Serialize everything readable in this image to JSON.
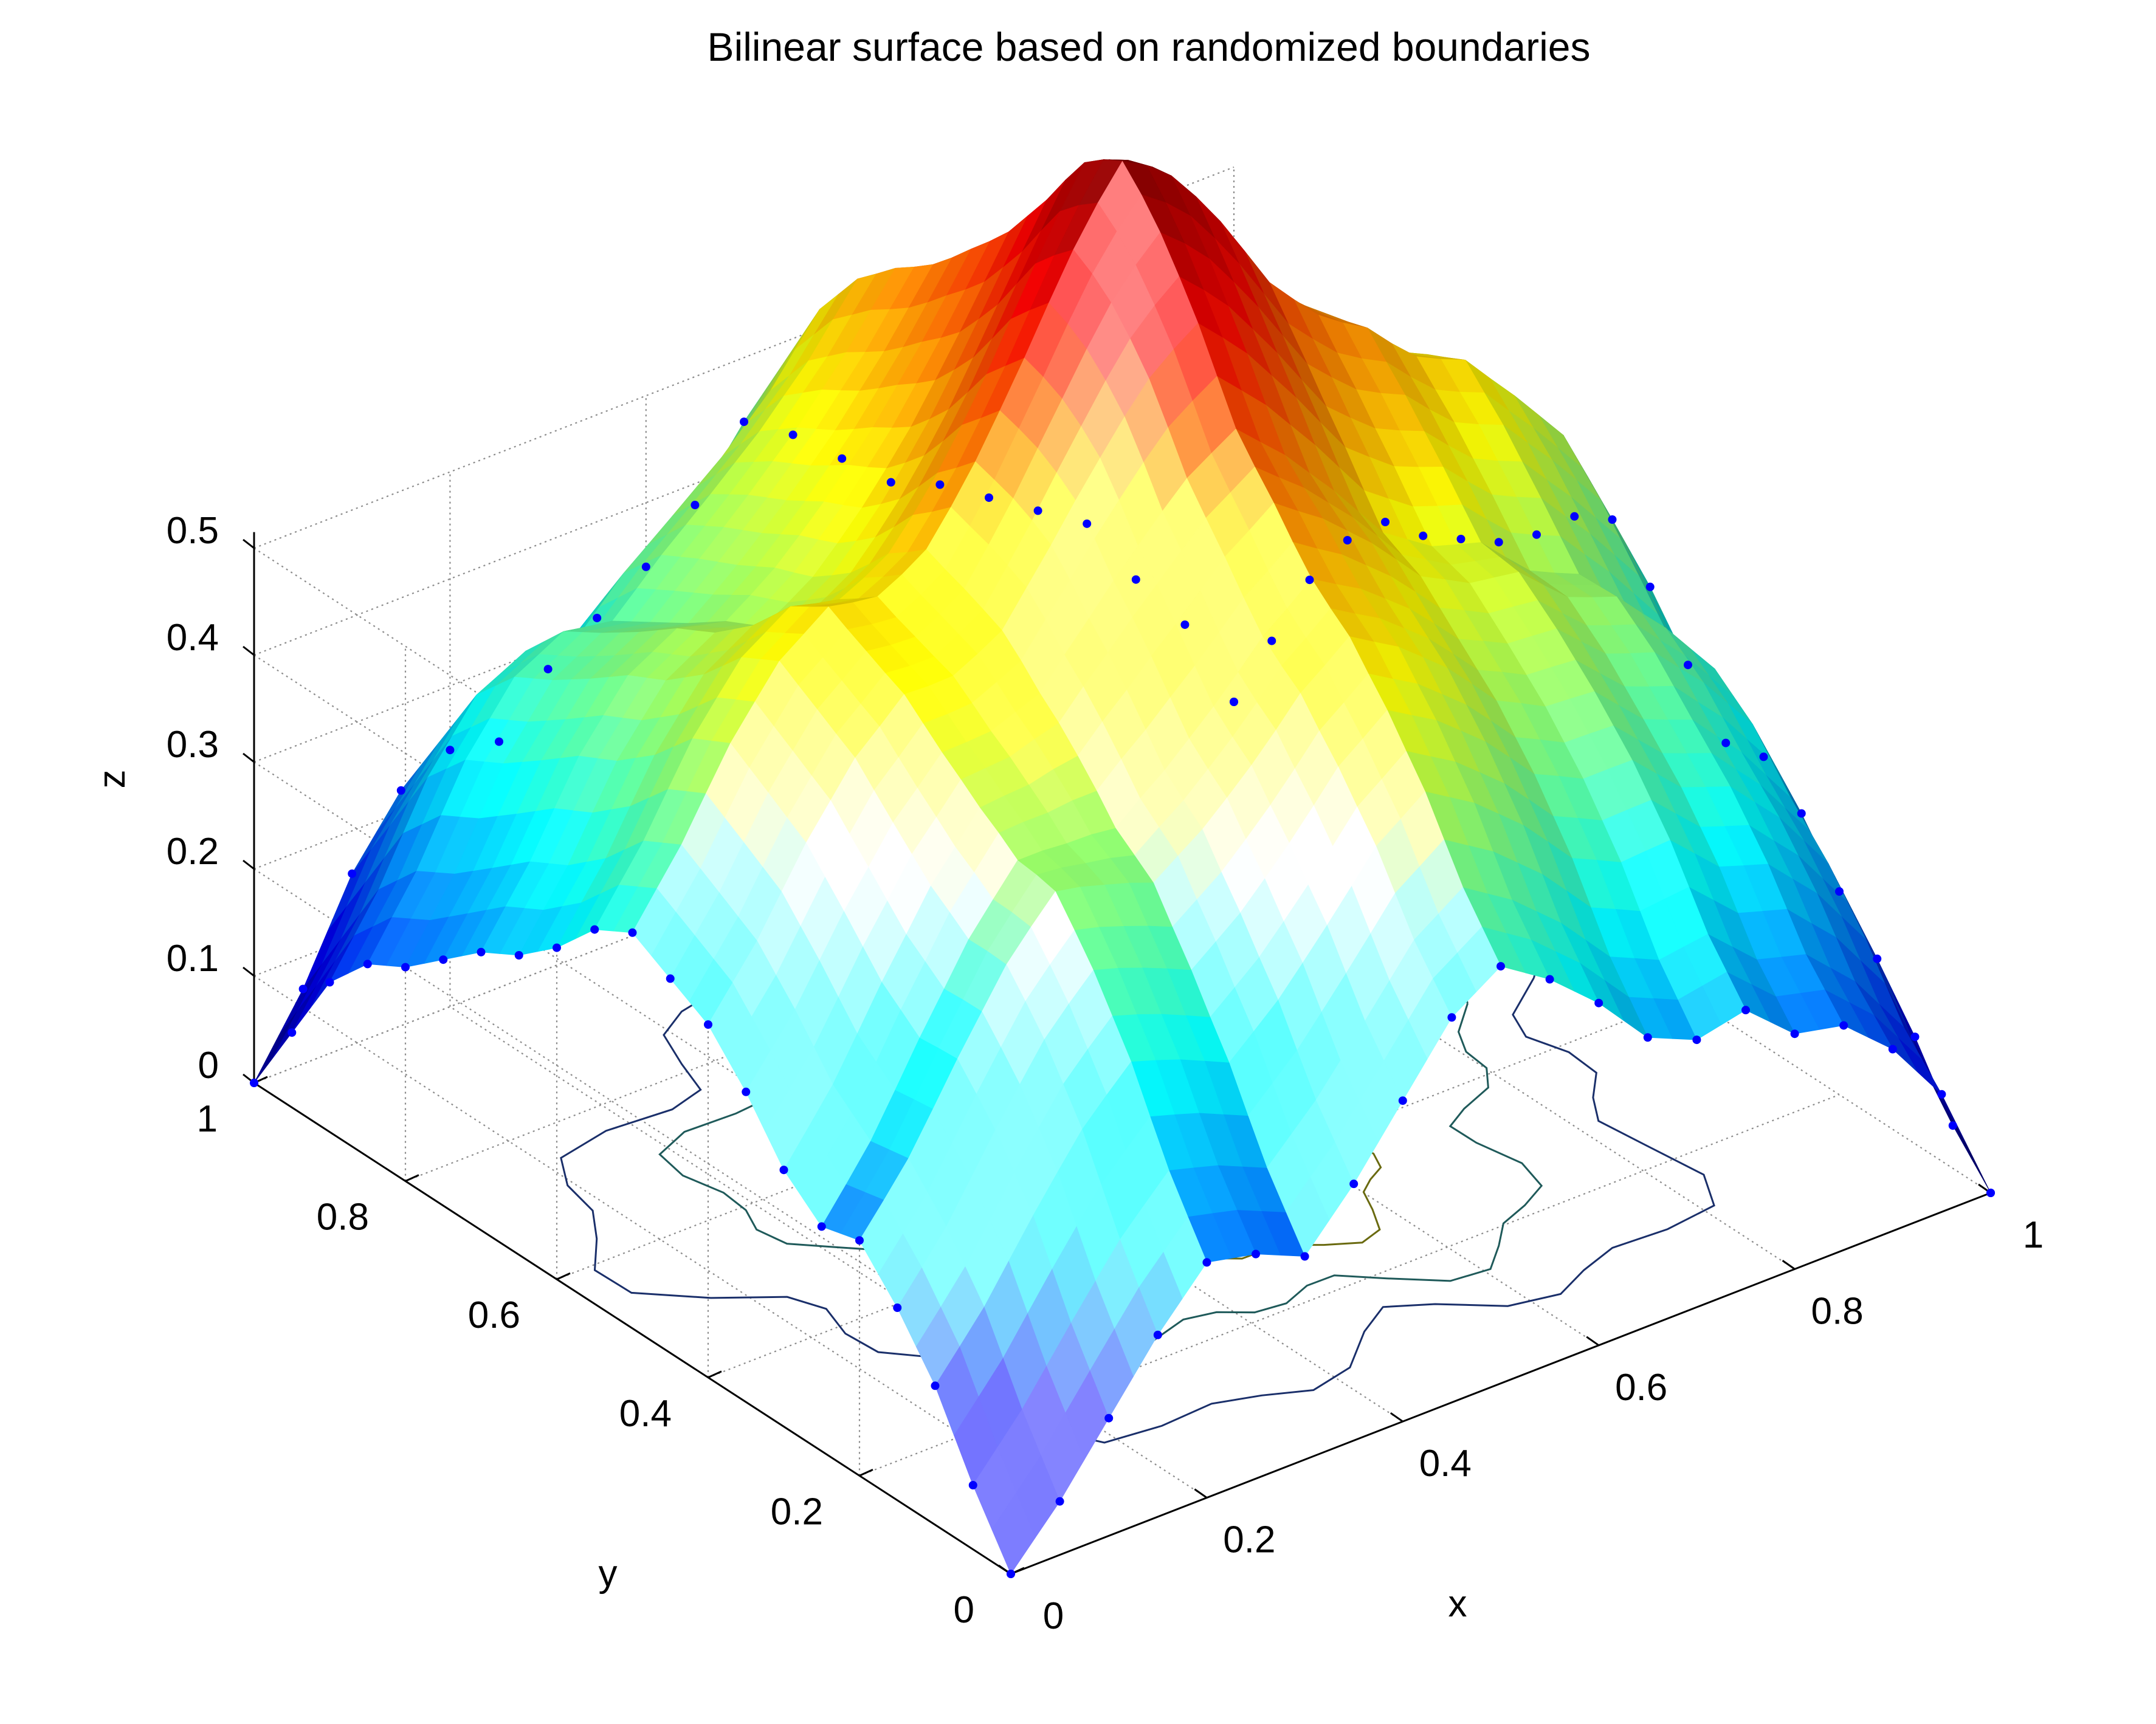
{
  "chart_data": {
    "type": "surface3d",
    "title": "Bilinear surface based on randomized boundaries",
    "xlabel": "x",
    "ylabel": "y",
    "zlabel": "z",
    "xlim": [
      0,
      1
    ],
    "ylim": [
      0,
      1
    ],
    "zlim": [
      0,
      0.5
    ],
    "x_ticks": [
      0,
      0.2,
      0.4,
      0.6,
      0.8,
      1
    ],
    "x_tick_labels": [
      "0",
      "0.2",
      "0.4",
      "0.6",
      "0.8",
      "1"
    ],
    "y_ticks": [
      0,
      0.2,
      0.4,
      0.6,
      0.8,
      1
    ],
    "y_tick_labels": [
      "0",
      "0.2",
      "0.4",
      "0.6",
      "0.8",
      "1"
    ],
    "z_ticks": [
      0,
      0.1,
      0.2,
      0.3,
      0.4,
      0.5
    ],
    "z_tick_labels": [
      "0",
      "0.1",
      "0.2",
      "0.3",
      "0.4",
      "0.5"
    ],
    "grid": true,
    "colormap": "jet",
    "shading": "interp with specular lighting",
    "boundary_markers_color": "#0000ff",
    "contour_projection": true,
    "boundaries": {
      "y0": [
        0,
        0.05,
        0.11,
        0.17,
        0.22,
        0.21,
        0.19,
        0.24,
        0.3,
        0.36,
        0.39,
        0.36,
        0.32,
        0.27,
        0.25,
        0.26,
        0.22,
        0.21,
        0.17,
        0.11,
        0.0
      ],
      "y1": [
        0,
        0.07,
        0.16,
        0.22,
        0.24,
        0.23,
        0.28,
        0.31,
        0.34,
        0.38,
        0.44,
        0.41,
        0.37,
        0.33,
        0.31,
        0.28,
        0.25,
        0.22,
        0.15,
        0.09,
        0.0
      ],
      "x0": [
        0,
        0.06,
        0.13,
        0.18,
        0.22,
        0.21,
        0.24,
        0.29,
        0.33,
        0.35,
        0.37,
        0.35,
        0.31,
        0.28,
        0.26,
        0.23,
        0.2,
        0.18,
        0.14,
        0.07,
        0.0
      ],
      "x1": [
        0,
        0.04,
        0.1,
        0.15,
        0.19,
        0.24,
        0.27,
        0.26,
        0.31,
        0.36,
        0.4,
        0.38,
        0.34,
        0.31,
        0.29,
        0.27,
        0.26,
        0.22,
        0.16,
        0.08,
        0.0
      ]
    }
  }
}
